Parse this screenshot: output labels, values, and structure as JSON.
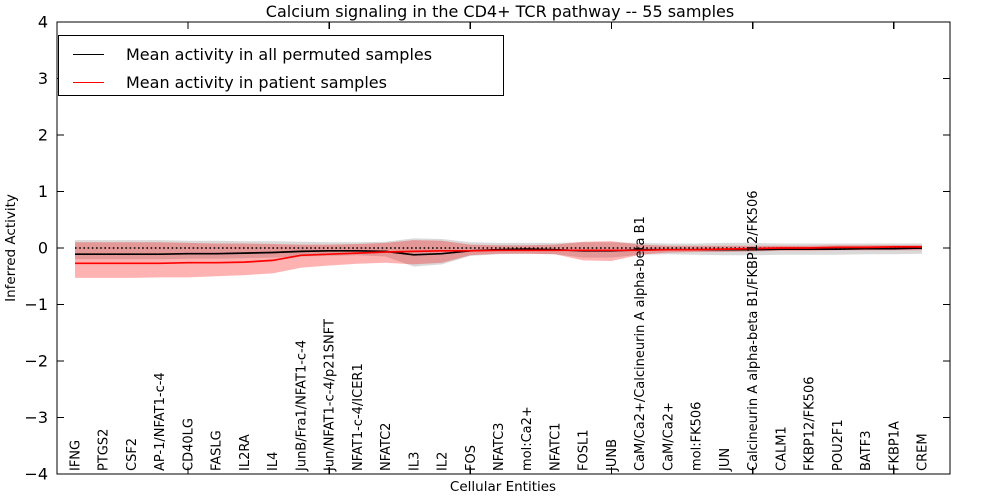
{
  "chart_data": {
    "type": "line",
    "title": "Calcium signaling in the CD4+ TCR pathway -- 55 samples",
    "xlabel": "Cellular Entities",
    "ylabel": "Inferred Activity",
    "ylim": [
      -4,
      4
    ],
    "yticks": [
      -4,
      -3,
      -2,
      -1,
      0,
      1,
      2,
      3,
      4
    ],
    "x_major_tick_indices": [
      4,
      9,
      14,
      19,
      24,
      29
    ],
    "grid": false,
    "legend": {
      "position": "upper left",
      "entries": [
        {
          "label": "Mean activity in all permuted samples",
          "color": "#000000"
        },
        {
          "label": "Mean activity in patient samples",
          "color": "#ff0000"
        }
      ]
    },
    "categories": [
      "IFNG",
      "PTGS2",
      "CSF2",
      "AP-1/NFAT1-c-4",
      "CD40LG",
      "FASLG",
      "IL2RA",
      "IL4",
      "JunB/Fra1/NFAT1-c-4",
      "Jun/NFAT1-c-4/p21SNFT",
      "NFAT1-c-4/ICER1",
      "NFATC2",
      "IL3",
      "IL2",
      "FOS",
      "NFATC3",
      "mol:Ca2+",
      "NFATC1",
      "FOSL1",
      "JUNB",
      "CaM/Ca2+/Calcineurin A alpha-beta B1",
      "CaM/Ca2+",
      "mol:FK506",
      "JUN",
      "Calcineurin A alpha-beta B1/FKBP12/FK506",
      "CALM1",
      "FKBP12/FK506",
      "POU2F1",
      "BATF3",
      "FKBP1A",
      "CREM"
    ],
    "series": [
      {
        "name": "Mean activity in all permuted samples",
        "color": "#000000",
        "style": "solid",
        "values": [
          -0.11,
          -0.11,
          -0.11,
          -0.11,
          -0.1,
          -0.1,
          -0.09,
          -0.08,
          -0.06,
          -0.05,
          -0.05,
          -0.06,
          -0.12,
          -0.1,
          -0.05,
          -0.03,
          -0.02,
          -0.03,
          -0.05,
          -0.05,
          -0.03,
          -0.03,
          -0.03,
          -0.03,
          -0.03,
          -0.02,
          -0.02,
          -0.02,
          -0.01,
          -0.01,
          0.0
        ]
      },
      {
        "name": "Mean activity in patient samples",
        "color": "#ff0000",
        "style": "solid",
        "values": [
          -0.27,
          -0.27,
          -0.27,
          -0.27,
          -0.26,
          -0.26,
          -0.25,
          -0.22,
          -0.13,
          -0.11,
          -0.09,
          -0.07,
          -0.06,
          -0.05,
          -0.05,
          -0.04,
          -0.04,
          -0.04,
          -0.04,
          -0.04,
          -0.04,
          -0.03,
          -0.03,
          -0.02,
          -0.01,
          0.0,
          0.0,
          0.01,
          0.01,
          0.02,
          0.02
        ]
      },
      {
        "name": "Zero reference",
        "color": "#000000",
        "style": "dotted",
        "values": [
          0,
          0,
          0,
          0,
          0,
          0,
          0,
          0,
          0,
          0,
          0,
          0,
          0,
          0,
          0,
          0,
          0,
          0,
          0,
          0,
          0,
          0,
          0,
          0,
          0,
          0,
          0,
          0,
          0,
          0,
          0
        ]
      }
    ],
    "bands": [
      {
        "name": "Permuted samples range",
        "color": "#8a8a8a",
        "opacity": 0.32,
        "lower": [
          -0.2,
          -0.2,
          -0.2,
          -0.2,
          -0.19,
          -0.19,
          -0.18,
          -0.17,
          -0.15,
          -0.14,
          -0.13,
          -0.15,
          -0.33,
          -0.29,
          -0.14,
          -0.11,
          -0.1,
          -0.11,
          -0.17,
          -0.17,
          -0.12,
          -0.11,
          -0.12,
          -0.13,
          -0.13,
          -0.12,
          -0.12,
          -0.12,
          -0.11,
          -0.11,
          -0.1
        ],
        "upper": [
          0.14,
          0.14,
          0.14,
          0.14,
          0.13,
          0.13,
          0.12,
          0.12,
          0.11,
          0.1,
          0.1,
          0.11,
          0.17,
          0.16,
          0.1,
          0.09,
          0.09,
          0.09,
          0.1,
          0.1,
          0.09,
          0.08,
          0.08,
          0.09,
          0.09,
          0.08,
          0.08,
          0.08,
          0.08,
          0.08,
          0.08
        ]
      },
      {
        "name": "Patient samples range",
        "color": "#ff0000",
        "opacity": 0.3,
        "lower": [
          -0.53,
          -0.53,
          -0.53,
          -0.52,
          -0.52,
          -0.5,
          -0.48,
          -0.45,
          -0.35,
          -0.31,
          -0.28,
          -0.26,
          -0.29,
          -0.26,
          -0.13,
          -0.1,
          -0.1,
          -0.11,
          -0.22,
          -0.23,
          -0.12,
          -0.08,
          -0.07,
          -0.07,
          -0.06,
          -0.05,
          -0.05,
          -0.04,
          -0.04,
          -0.04,
          -0.04
        ],
        "upper": [
          0.1,
          0.1,
          0.1,
          0.1,
          0.09,
          0.08,
          0.08,
          0.07,
          0.06,
          0.06,
          0.07,
          0.09,
          0.14,
          0.13,
          0.06,
          0.05,
          0.05,
          0.06,
          0.11,
          0.12,
          0.06,
          0.04,
          0.04,
          0.04,
          0.04,
          0.04,
          0.04,
          0.05,
          0.05,
          0.05,
          0.05
        ]
      }
    ]
  }
}
